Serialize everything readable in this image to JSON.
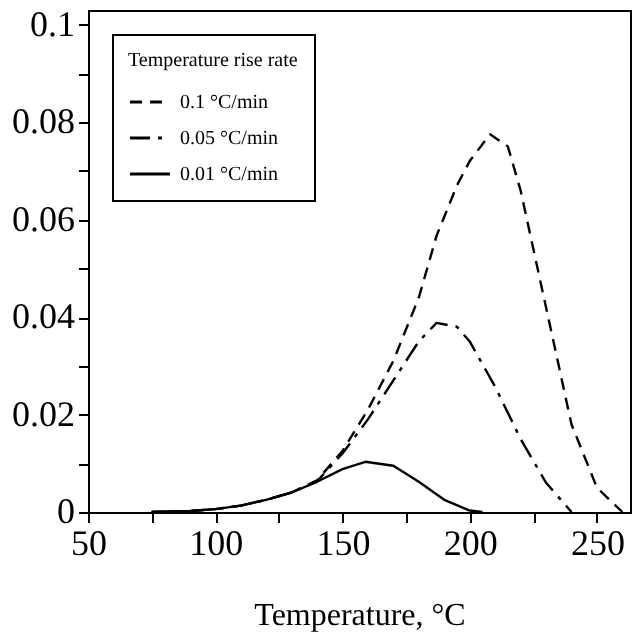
{
  "chart_data": {
    "type": "line",
    "xlabel": "Temperature,    °C",
    "legend_title": "Temperature rise rate",
    "legend": "top left",
    "grid": false,
    "marker": "none",
    "xlim": [
      50,
      263
    ],
    "ylim": [
      0,
      0.103
    ],
    "xticks": [
      50,
      {
        "value": 75,
        "label": null
      },
      100,
      {
        "value": 125,
        "label": null
      },
      150,
      {
        "value": 175,
        "label": null
      },
      200,
      {
        "value": 225,
        "label": null
      },
      250
    ],
    "yticks": [
      0,
      {
        "value": 0.01,
        "label": null
      },
      0.02,
      {
        "value": 0.03,
        "label": null
      },
      0.04,
      {
        "value": 0.05,
        "label": null
      },
      0.06,
      {
        "value": 0.07,
        "label": null
      },
      0.08,
      {
        "value": 0.09,
        "label": null
      },
      0.1
    ],
    "series": [
      {
        "name": "0.1 °C/min",
        "color": "#000000",
        "line_style": "dashed",
        "x": [
          75,
          90,
          100,
          110,
          120,
          130,
          140,
          150,
          160,
          170,
          180,
          187,
          195,
          200,
          208,
          215,
          220,
          230,
          240,
          250,
          260
        ],
        "values": [
          0,
          0.0002,
          0.0006,
          0.0013,
          0.0025,
          0.004,
          0.0065,
          0.0125,
          0.021,
          0.031,
          0.044,
          0.0567,
          0.067,
          0.072,
          0.0775,
          0.075,
          0.066,
          0.042,
          0.018,
          0.005,
          0
        ]
      },
      {
        "name": "0.05 °C/min",
        "color": "#000000",
        "line_style": "dashdot",
        "x": [
          75,
          90,
          100,
          110,
          120,
          130,
          140,
          150,
          160,
          170,
          180,
          187,
          195,
          200,
          210,
          220,
          230,
          240
        ],
        "values": [
          0,
          0.0002,
          0.0006,
          0.0013,
          0.0025,
          0.004,
          0.0063,
          0.012,
          0.019,
          0.027,
          0.035,
          0.0388,
          0.038,
          0.035,
          0.0257,
          0.015,
          0.006,
          0
        ]
      },
      {
        "name": "0.01 °C/min",
        "color": "#000000",
        "line_style": "solid",
        "x": [
          75,
          90,
          100,
          110,
          120,
          130,
          140,
          150,
          159,
          170,
          180,
          190,
          200,
          205
        ],
        "values": [
          0,
          0.0002,
          0.0006,
          0.0013,
          0.0025,
          0.004,
          0.0062,
          0.0088,
          0.0103,
          0.0095,
          0.0062,
          0.0025,
          0.0003,
          0
        ]
      }
    ]
  }
}
